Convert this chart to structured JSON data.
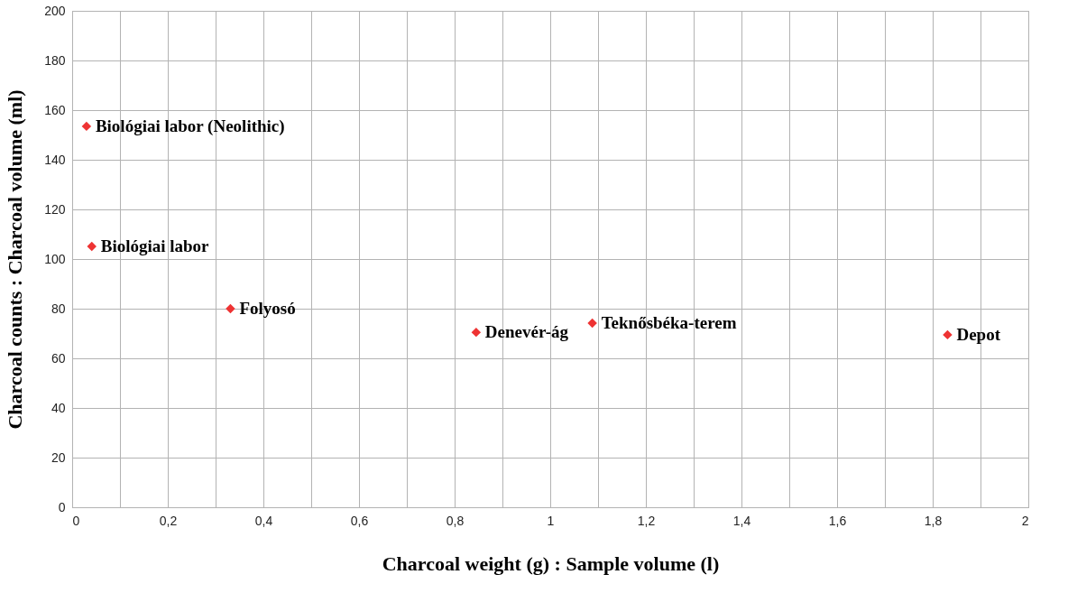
{
  "chart_data": {
    "type": "scatter",
    "xlabel": "Charcoal weight (g) : Sample volume (l)",
    "ylabel": "Charcoal counts : Charcoal volume (ml)",
    "x": [
      0.03,
      0.041,
      0.331,
      0.845,
      1.088,
      1.831
    ],
    "series": [
      {
        "color": "#ee3333",
        "values": [
          153.5,
          105.1,
          80,
          70.5,
          74.2,
          69.5
        ]
      }
    ],
    "marker": "diamond",
    "xlim": [
      0,
      2
    ],
    "ylim": [
      0,
      200
    ],
    "xticks": [
      0,
      {
        "value": 0.1,
        "label": null
      },
      {
        "value": 0.2,
        "label": "0,2"
      },
      {
        "value": 0.3,
        "label": null
      },
      {
        "value": 0.4,
        "label": "0,4"
      },
      {
        "value": 0.5,
        "label": null
      },
      {
        "value": 0.6,
        "label": "0,6"
      },
      {
        "value": 0.7,
        "label": null
      },
      {
        "value": 0.8,
        "label": "0,8"
      },
      {
        "value": 0.9,
        "label": null
      },
      1,
      {
        "value": 1.1,
        "label": null
      },
      {
        "value": 1.2,
        "label": "1,2"
      },
      {
        "value": 1.3,
        "label": null
      },
      {
        "value": 1.4,
        "label": "1,4"
      },
      {
        "value": 1.5,
        "label": null
      },
      {
        "value": 1.6,
        "label": "1,6"
      },
      {
        "value": 1.7,
        "label": null
      },
      {
        "value": 1.8,
        "label": "1,8"
      },
      {
        "value": 1.9,
        "label": null
      },
      2
    ],
    "yticks": [
      0,
      20,
      40,
      60,
      80,
      100,
      120,
      140,
      160,
      180,
      200
    ],
    "grid": true,
    "annotations": [
      {
        "text": "Biológiai labor (Neolithic)",
        "x": 0.03,
        "y": 153.5
      },
      {
        "text": "Biológiai labor",
        "x": 0.041,
        "y": 105.1
      },
      {
        "text": "Folyosó",
        "x": 0.331,
        "y": 80
      },
      {
        "text": "Denevér-ág",
        "x": 0.845,
        "y": 70.5
      },
      {
        "text": "Teknősbéka-terem",
        "x": 1.088,
        "y": 74.2
      },
      {
        "text": "Depot",
        "x": 1.831,
        "y": 69.5
      }
    ]
  }
}
